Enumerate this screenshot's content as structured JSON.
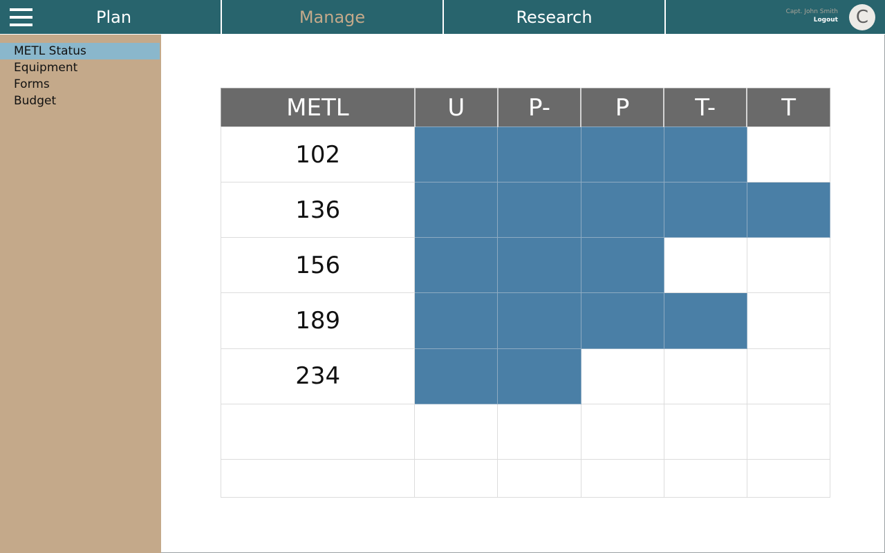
{
  "nav": {
    "tabs": [
      {
        "label": "Plan",
        "color": "#ffffff"
      },
      {
        "label": "Manage",
        "color": "#c4a98a"
      },
      {
        "label": "Research",
        "color": "#ffffff"
      }
    ],
    "user": {
      "name": "Capt. John Smith",
      "logout_label": "Logout",
      "avatar_initial": "C"
    }
  },
  "sidebar": {
    "items": [
      {
        "label": "METL Status",
        "active": true
      },
      {
        "label": "Equipment",
        "active": false
      },
      {
        "label": "Forms",
        "active": false
      },
      {
        "label": "Budget",
        "active": false
      }
    ]
  },
  "metl_table": {
    "columns": [
      "METL",
      "U",
      "P-",
      "P",
      "T-",
      "T"
    ],
    "fill_color": "#4a7fa6",
    "rows": [
      {
        "id": "102",
        "status_level": 4
      },
      {
        "id": "136",
        "status_level": 5
      },
      {
        "id": "156",
        "status_level": 3
      },
      {
        "id": "189",
        "status_level": 4
      },
      {
        "id": "234",
        "status_level": 2
      },
      {
        "id": "",
        "status_level": 0
      },
      {
        "id": "",
        "status_level": 0
      }
    ]
  }
}
